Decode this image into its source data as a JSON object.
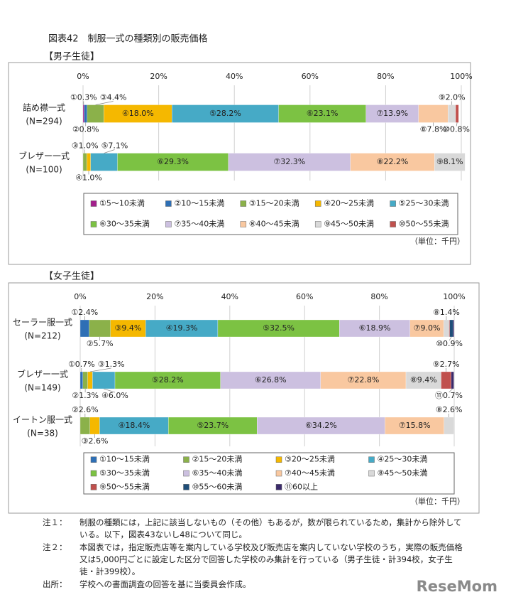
{
  "title": "図表42　制服一式の種類別の販売価格",
  "chart_data": [
    {
      "type": "stacked-bar-horizontal",
      "heading": "【男子生徒】",
      "unit": "（単位：千円）",
      "categories": [
        "詰め襟一式",
        "ブレザー一式"
      ],
      "category_n": [
        "(N=294)",
        "(N=100)"
      ],
      "xlim": [
        0,
        100
      ],
      "xticks": [
        {
          "value": 0,
          "label": "0%"
        },
        {
          "value": 20,
          "label": "20%"
        },
        {
          "value": 40,
          "label": "40%"
        },
        {
          "value": 60,
          "label": "60%"
        },
        {
          "value": 80,
          "label": "80%"
        },
        {
          "value": 100,
          "label": "100%"
        }
      ],
      "grid": true,
      "series": [
        {
          "name": "①5～10未満",
          "color": "#a3208c",
          "values": [
            0.3,
            null
          ],
          "value_labels": [
            "①0.3%",
            null
          ]
        },
        {
          "name": "②10～15未満",
          "color": "#2e6fb5",
          "values": [
            0.8,
            null
          ],
          "value_labels": [
            "②0.8%",
            null
          ]
        },
        {
          "name": "③15～20未満",
          "color": "#8bb14a",
          "values": [
            4.4,
            1.0
          ],
          "value_labels": [
            "③4.4%",
            "③1.0%"
          ]
        },
        {
          "name": "④20～25未満",
          "color": "#f5b800",
          "values": [
            18.0,
            1.0
          ],
          "value_labels": [
            "④18.0%",
            "④1.0%"
          ]
        },
        {
          "name": "⑤25～30未満",
          "color": "#46aac6",
          "values": [
            28.2,
            7.1
          ],
          "value_labels": [
            "⑤28.2%",
            "⑤7.1%"
          ]
        },
        {
          "name": "⑥30～35未満",
          "color": "#7cc243",
          "values": [
            23.1,
            29.3
          ],
          "value_labels": [
            "⑥23.1%",
            "⑥29.3%"
          ]
        },
        {
          "name": "⑦35～40未満",
          "color": "#ccc0e0",
          "values": [
            13.9,
            32.3
          ],
          "value_labels": [
            "⑦13.9%",
            "⑦32.3%"
          ]
        },
        {
          "name": "⑧40～45未満",
          "color": "#f9c8a0",
          "values": [
            7.8,
            22.2
          ],
          "value_labels": [
            "⑧7.8%",
            "⑧22.2%"
          ]
        },
        {
          "name": "⑨45～50未満",
          "color": "#d9d9d9",
          "values": [
            2.0,
            8.1
          ],
          "value_labels": [
            "⑨2.0%",
            "⑨8.1%"
          ]
        },
        {
          "name": "⑩50～55未満",
          "color": "#c0504d",
          "values": [
            0.8,
            null
          ],
          "value_labels": [
            "⑩0.8%",
            null
          ]
        }
      ]
    },
    {
      "type": "stacked-bar-horizontal",
      "heading": "【女子生徒】",
      "unit": "（単位：千円）",
      "categories": [
        "セーラー服一式",
        "ブレザー一式",
        "イートン服一式"
      ],
      "category_n": [
        "(N=212)",
        "(N=149)",
        "(N=38)"
      ],
      "xlim": [
        0,
        100
      ],
      "xticks": [
        {
          "value": 0,
          "label": "0%"
        },
        {
          "value": 20,
          "label": "20%"
        },
        {
          "value": 40,
          "label": "40%"
        },
        {
          "value": 60,
          "label": "60%"
        },
        {
          "value": 80,
          "label": "80%"
        },
        {
          "value": 100,
          "label": "100%"
        }
      ],
      "grid": true,
      "series": [
        {
          "name": "①10～15未満",
          "color": "#2e6fb5",
          "values": [
            2.4,
            0.7,
            null
          ],
          "value_labels": [
            "①2.4%",
            "①0.7%",
            null
          ]
        },
        {
          "name": "②15～20未満",
          "color": "#8bb14a",
          "values": [
            5.7,
            1.3,
            2.6
          ],
          "value_labels": [
            "②5.7%",
            "②1.3%",
            "②2.6%"
          ]
        },
        {
          "name": "③20～25未満",
          "color": "#f5b800",
          "values": [
            9.4,
            1.3,
            2.6
          ],
          "value_labels": [
            "③9.4%",
            "③1.3%",
            "③2.6%"
          ]
        },
        {
          "name": "④25～30未満",
          "color": "#46aac6",
          "values": [
            19.3,
            6.0,
            18.4
          ],
          "value_labels": [
            "④19.3%",
            "④6.0%",
            "④18.4%"
          ]
        },
        {
          "name": "⑤30～35未満",
          "color": "#7cc243",
          "values": [
            32.5,
            28.2,
            23.7
          ],
          "value_labels": [
            "⑤32.5%",
            "⑤28.2%",
            "⑤23.7%"
          ]
        },
        {
          "name": "⑥35～40未満",
          "color": "#ccc0e0",
          "values": [
            18.9,
            26.8,
            34.2
          ],
          "value_labels": [
            "⑥18.9%",
            "⑥26.8%",
            "⑥34.2%"
          ]
        },
        {
          "name": "⑦40～45未満",
          "color": "#f9c8a0",
          "values": [
            9.0,
            22.8,
            15.8
          ],
          "value_labels": [
            "⑦9.0%",
            "⑦22.8%",
            "⑦15.8%"
          ]
        },
        {
          "name": "⑧45～50未満",
          "color": "#d9d9d9",
          "values": [
            1.4,
            9.4,
            2.6
          ],
          "value_labels": [
            "⑧1.4%",
            "⑧9.4%",
            "⑧2.6%"
          ]
        },
        {
          "name": "⑨50～55未満",
          "color": "#c0504d",
          "values": [
            0.2,
            2.7,
            null
          ],
          "value_labels": [
            null,
            "⑨2.7%",
            null
          ]
        },
        {
          "name": "⑩55～60未満",
          "color": "#1f4e79",
          "values": [
            0.9,
            null,
            null
          ],
          "value_labels": [
            "⑩0.9%",
            null,
            null
          ]
        },
        {
          "name": "⑪60以上",
          "color": "#3b2a6b",
          "values": [
            0.3,
            0.7,
            null
          ],
          "value_labels": [
            null,
            "⑪0.7%",
            null
          ]
        }
      ]
    }
  ],
  "notes": [
    {
      "label": "注１：",
      "text": "制服の種類には，上記に該当しないもの（その他）もあるが，数が限られているため，集計から除外している。以下，図表43ないし48について同じ。"
    },
    {
      "label": "注２：",
      "text": "本図表では，指定販売店等を案内している学校及び販売店を案内していない学校のうち，実際の販売価格又は5,000円ごとに設定した区分で回答した学校のみ集計を行っている（男子生徒・計394校，女子生徒・計399校）。"
    },
    {
      "label": "出所：",
      "text": "学校への書面調査の回答を基に当委員会作成。"
    }
  ],
  "watermark": "ReseMom"
}
